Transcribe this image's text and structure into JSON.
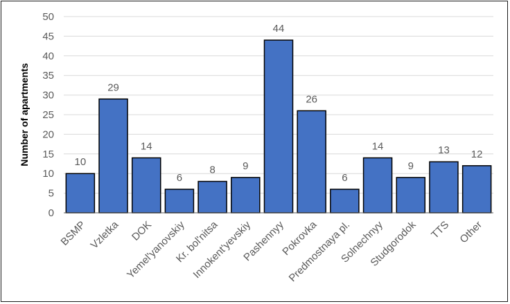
{
  "chart_data": {
    "type": "bar",
    "title": "",
    "xlabel": "",
    "ylabel": "Number of apartments",
    "categories": [
      "BSMP",
      "Vzletka",
      "DOK",
      "Yemel'yanovskiy",
      "Kr. bol'nitsa",
      "Innokent'yevskiy",
      "Pashennyy",
      "Pokrovka",
      "Predmostnaya pl.",
      "Solnechnyy",
      "Studgorodok",
      "TTS",
      "Other"
    ],
    "values": [
      10,
      29,
      14,
      6,
      8,
      9,
      44,
      26,
      6,
      14,
      9,
      13,
      12
    ],
    "ylim": [
      0,
      50
    ],
    "yticks": [
      0,
      5,
      10,
      15,
      20,
      25,
      30,
      35,
      40,
      45,
      50
    ],
    "grid": true,
    "legend": "none",
    "colors": {
      "bar_fill": "#4472C4",
      "bar_stroke": "#000000",
      "grid": "#d9d9d9",
      "text": "#595959"
    }
  }
}
